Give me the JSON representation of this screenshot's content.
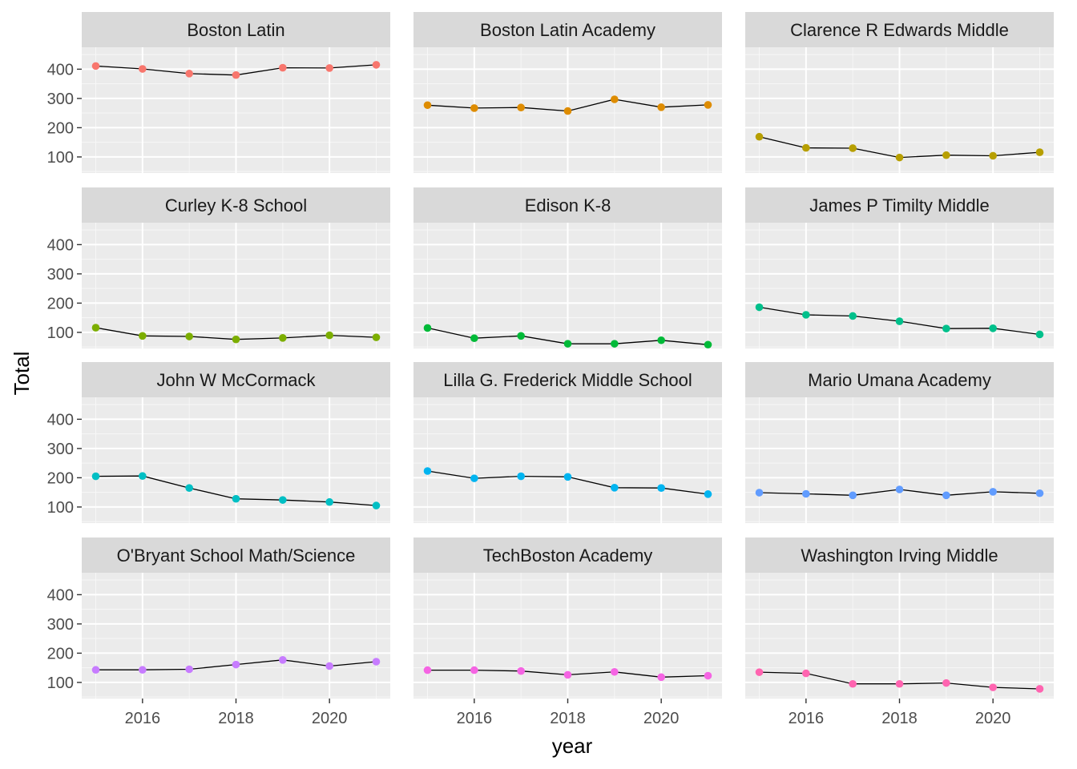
{
  "chart_data": {
    "type": "line",
    "facet": true,
    "xlabel": "year",
    "ylabel": "Total",
    "xlim": [
      2014.7,
      2021.3
    ],
    "ylim": [
      45,
      475
    ],
    "x_ticks": [
      2016,
      2018,
      2020
    ],
    "x_tick_labels": [
      "2016",
      "2018",
      "2020"
    ],
    "y_ticks": [
      100,
      200,
      300,
      400
    ],
    "y_tick_labels": [
      "100",
      "200",
      "300",
      "400"
    ],
    "x": [
      2015,
      2016,
      2017,
      2018,
      2019,
      2020,
      2021
    ],
    "grid": true,
    "legend": "none",
    "line_color": "#000000",
    "series": [
      {
        "name": "Boston Latin",
        "color": "#F8766D",
        "values": [
          411,
          401,
          385,
          380,
          405,
          404,
          415
        ]
      },
      {
        "name": "Boston Latin Academy",
        "color": "#DE8C00",
        "values": [
          277,
          267,
          269,
          257,
          297,
          270,
          278
        ]
      },
      {
        "name": "Clarence R Edwards Middle",
        "color": "#B79F00",
        "values": [
          169,
          131,
          130,
          98,
          106,
          104,
          116
        ]
      },
      {
        "name": "Curley K-8 School",
        "color": "#7CAE00",
        "values": [
          116,
          88,
          86,
          76,
          81,
          90,
          83
        ]
      },
      {
        "name": "Edison K-8",
        "color": "#00BA38",
        "values": [
          115,
          80,
          88,
          61,
          61,
          73,
          58
        ]
      },
      {
        "name": "James P Timilty Middle",
        "color": "#00C08B",
        "values": [
          186,
          160,
          156,
          138,
          113,
          114,
          93
        ]
      },
      {
        "name": "John W McCormack",
        "color": "#00BFC4",
        "values": [
          205,
          206,
          165,
          128,
          124,
          117,
          105
        ]
      },
      {
        "name": "Lilla G. Frederick Middle School",
        "color": "#00B4F0",
        "values": [
          223,
          198,
          205,
          203,
          166,
          165,
          144
        ]
      },
      {
        "name": "Mario Umana Academy",
        "color": "#619CFF",
        "values": [
          149,
          145,
          140,
          160,
          140,
          152,
          147
        ]
      },
      {
        "name": "O'Bryant School Math/Science",
        "color": "#C77CFF",
        "values": [
          143,
          143,
          145,
          161,
          177,
          156,
          171
        ]
      },
      {
        "name": "TechBoston Academy",
        "color": "#F564E3",
        "values": [
          142,
          142,
          139,
          126,
          136,
          118,
          123
        ]
      },
      {
        "name": "Washington Irving Middle",
        "color": "#FF64B0",
        "values": [
          135,
          131,
          95,
          95,
          98,
          83,
          78
        ]
      }
    ]
  }
}
